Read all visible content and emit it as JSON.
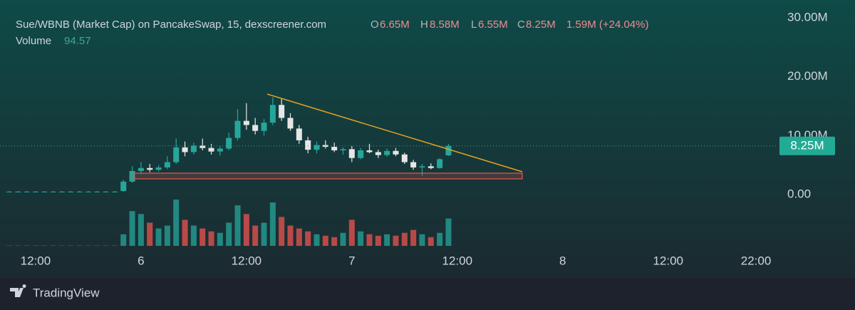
{
  "chart_data": {
    "type": "candlestick",
    "title": "Sue/WBNB (Market Cap) on PancakeSwap, 15, dexscreener.com",
    "legend": {
      "open_label": "O",
      "open": "6.65M",
      "high_label": "H",
      "high": "8.58M",
      "low_label": "L",
      "low": "6.55M",
      "close_label": "C",
      "close": "8.25M",
      "change": "1.59M (+24.04%)",
      "volume_label": "Volume",
      "volume_value": 94.57
    },
    "x": [
      9,
      10,
      11,
      12,
      13,
      14,
      15,
      16,
      17,
      18,
      19,
      20,
      21,
      22,
      23,
      24,
      25,
      26,
      27,
      28,
      29,
      30,
      31,
      32,
      33,
      34,
      35,
      36,
      37,
      38,
      39,
      40,
      41,
      42,
      43,
      44,
      45,
      46,
      47,
      48,
      49,
      50,
      51,
      52,
      53,
      54,
      55,
      56,
      57,
      58,
      59
    ],
    "open": [
      0.5,
      0.5,
      0.5,
      0.5,
      0.5,
      0.5,
      0.5,
      0.5,
      0.5,
      0.5,
      0.5,
      0.5,
      0.5,
      0.6,
      2.2,
      4,
      4.5,
      4.2,
      4.6,
      5.5,
      8,
      7.2,
      8.3,
      7.9,
      7.3,
      7.8,
      9.6,
      12.5,
      11.8,
      10.8,
      12.2,
      15.2,
      13,
      11.2,
      9.2,
      7.6,
      8.4,
      8.1,
      7.5,
      7.7,
      6.2,
      7.5,
      7.2,
      6.7,
      7.4,
      6.8,
      5.5,
      4.6,
      4.8,
      4.5,
      6.65
    ],
    "high": [
      0.6,
      0.6,
      0.6,
      0.6,
      0.6,
      0.6,
      0.6,
      0.6,
      0.6,
      0.6,
      0.6,
      0.6,
      0.6,
      2.5,
      4.8,
      5.5,
      5.2,
      5,
      6.5,
      9.5,
      9,
      8.8,
      9.5,
      8.6,
      8.2,
      10.5,
      14.5,
      15.5,
      13,
      12.8,
      16.5,
      16.2,
      13.8,
      11.8,
      9.8,
      9,
      9.2,
      8.8,
      8,
      8.2,
      7.9,
      8.6,
      7.6,
      7.8,
      7.9,
      7.1,
      5.9,
      5.2,
      5.3,
      6.2,
      8.58
    ],
    "low": [
      0.4,
      0.4,
      0.4,
      0.4,
      0.4,
      0.4,
      0.4,
      0.4,
      0.4,
      0.4,
      0.4,
      0.4,
      0.4,
      0.5,
      2,
      3.5,
      3.8,
      3.9,
      4.3,
      5.2,
      6.5,
      6.8,
      7.5,
      6.8,
      6.6,
      7.5,
      9.2,
      11,
      10.2,
      10,
      11.8,
      12.5,
      10.8,
      8.6,
      7,
      7,
      7.8,
      7.2,
      6.8,
      5.5,
      6,
      7,
      6.2,
      6.4,
      6.5,
      5.2,
      4.2,
      3.2,
      4.3,
      4.4,
      6.55
    ],
    "close": [
      0.5,
      0.5,
      0.5,
      0.5,
      0.5,
      0.5,
      0.5,
      0.5,
      0.5,
      0.5,
      0.5,
      0.5,
      0.5,
      2.2,
      4,
      4.5,
      4.2,
      4.6,
      5.5,
      8,
      7.2,
      8.3,
      7.9,
      7.3,
      7.8,
      9.6,
      12.5,
      11.8,
      10.8,
      12.2,
      15.2,
      13,
      11.2,
      9.2,
      7.6,
      8.4,
      8.1,
      7.5,
      7.7,
      6.2,
      7.5,
      7.2,
      6.7,
      7.4,
      6.8,
      5.5,
      4.6,
      4.8,
      4.5,
      6,
      8.25
    ],
    "volume": [
      1,
      1,
      1,
      1,
      1,
      1,
      1,
      1,
      1,
      1,
      1,
      1,
      1,
      40,
      120,
      110,
      80,
      60,
      70,
      160,
      90,
      70,
      60,
      50,
      45,
      80,
      140,
      110,
      70,
      80,
      150,
      100,
      70,
      60,
      50,
      40,
      35,
      30,
      45,
      90,
      50,
      40,
      35,
      40,
      35,
      45,
      55,
      40,
      30,
      45,
      94.57
    ],
    "up_color": "#26a69a",
    "down_color": "#e6e6e6",
    "volume_up_color": "#26a69a",
    "volume_down_color": "#ef5350",
    "xlim": [
      7.95,
      96.35
    ],
    "xticks": [
      {
        "value": 12,
        "label": "12:00"
      },
      {
        "value": 24,
        "label": "6"
      },
      {
        "value": 36,
        "label": "12:00"
      },
      {
        "value": 48,
        "label": "7"
      },
      {
        "value": 60,
        "label": "12:00"
      },
      {
        "value": 72,
        "label": "8"
      },
      {
        "value": 84,
        "label": "12:00"
      },
      {
        "value": 94,
        "label": "22:00"
      }
    ],
    "ylim": [
      -8.7,
      33
    ],
    "yticks": [
      {
        "value": 0,
        "label": "0.00"
      },
      {
        "value": 10,
        "label": "10.00M"
      },
      {
        "value": 20,
        "label": "20.00M"
      },
      {
        "value": 30,
        "label": "30.00M"
      }
    ]
  },
  "footer": {
    "brand": "TradingView"
  }
}
